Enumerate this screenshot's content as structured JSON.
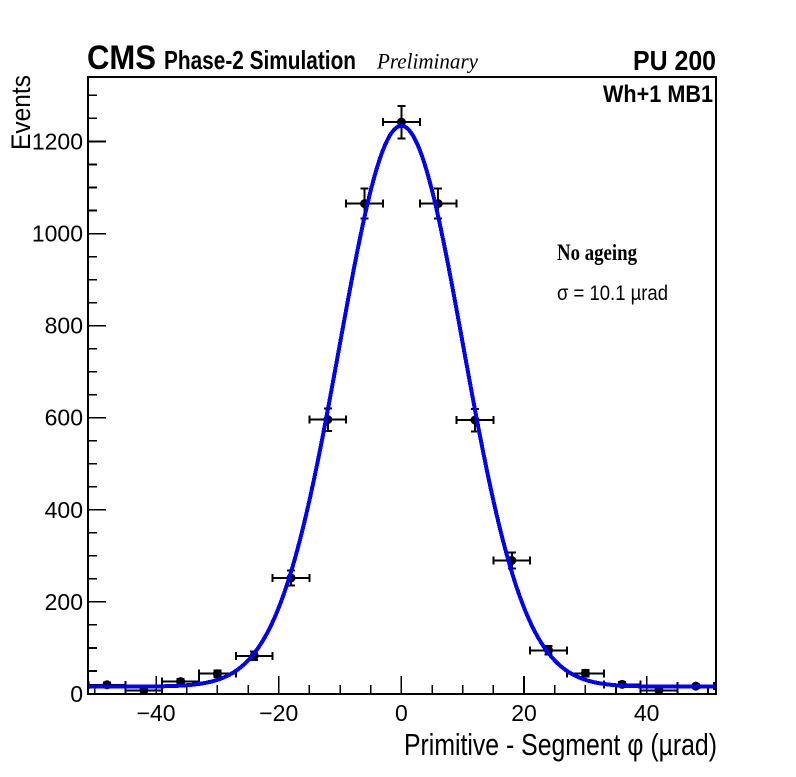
{
  "header": {
    "experiment": "CMS",
    "context": "Phase-2 Simulation",
    "status": "Preliminary",
    "pileup": "PU 200"
  },
  "annotations": {
    "chamber": "Wh+1 MB1",
    "scenario": "No ageing",
    "resolution": "σ = 10.1 µrad"
  },
  "colors": {
    "fit_curve": "#0202f2",
    "data_marker": "#000000",
    "frame": "#000000",
    "background": "#ffffff"
  },
  "chart_data": {
    "type": "scatter",
    "title": "",
    "xlabel": "Primitive - Segment φ (µrad)",
    "ylabel": "Events",
    "xlim": [
      -51.1,
      51.3
    ],
    "ylim": [
      0,
      1340
    ],
    "grid": false,
    "legend_position": null,
    "x_major_ticks": [
      -40,
      -20,
      0,
      20,
      40
    ],
    "x_tick_labels": [
      "−40",
      "−20",
      "0",
      "20",
      "40"
    ],
    "x_minor_step": 5,
    "y_major_ticks": [
      0,
      200,
      400,
      600,
      800,
      1000,
      1200
    ],
    "y_tick_labels": [
      "0",
      "200",
      "400",
      "600",
      "800",
      "1000",
      "1200"
    ],
    "y_minor_step": 50,
    "series": [
      {
        "name": "data",
        "marker": "filled-circle",
        "color": "#000000",
        "x": [
          -48,
          -42,
          -36,
          -30,
          -24,
          -18,
          -12,
          -6,
          0,
          6,
          12,
          18,
          24,
          30,
          36,
          42,
          48
        ],
        "y": [
          20,
          8,
          27,
          44,
          83,
          252,
          596,
          1065,
          1242,
          1065,
          595,
          290,
          95,
          45,
          21,
          8,
          17
        ],
        "xerr": 3,
        "yerr": [
          4.5,
          2.8,
          5.2,
          6.6,
          9.1,
          15.9,
          24.4,
          32.6,
          35.2,
          32.6,
          24.4,
          17.0,
          9.7,
          6.7,
          4.6,
          2.8,
          4.1
        ]
      }
    ],
    "fit": {
      "name": "gaussian-fit",
      "shape": "gaussian+constant",
      "color": "#0202f2",
      "amplitude": 1218,
      "mean": 0,
      "sigma": 10.1,
      "constant": 16,
      "range": [
        -51.1,
        51.3
      ]
    }
  }
}
